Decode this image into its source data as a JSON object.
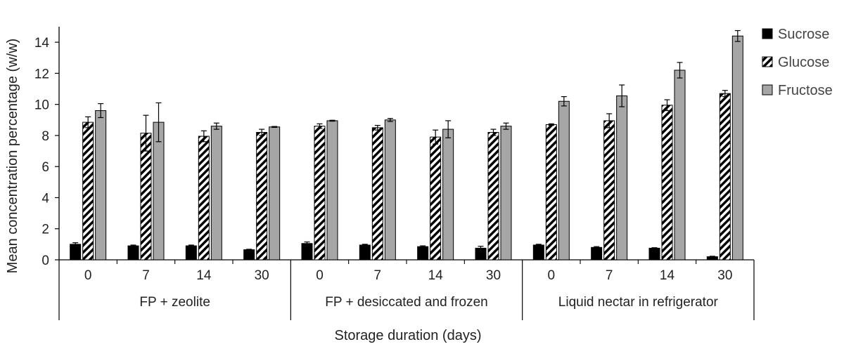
{
  "chart_data": {
    "type": "bar",
    "title": "",
    "xlabel": "Storage duration (days)",
    "ylabel": "Mean concentration percentage (w/w)",
    "ylim": [
      0,
      15
    ],
    "yticks": [
      0,
      2,
      4,
      6,
      8,
      10,
      12,
      14
    ],
    "grid": false,
    "legend_position": "top-right",
    "groups": [
      {
        "name": "FP + zeolite",
        "categories": [
          "0",
          "7",
          "14",
          "30"
        ]
      },
      {
        "name": "FP + desiccated and frozen",
        "categories": [
          "0",
          "7",
          "14",
          "30"
        ]
      },
      {
        "name": "Liquid nectar in refrigerator",
        "categories": [
          "0",
          "7",
          "14",
          "30"
        ]
      }
    ],
    "series": [
      {
        "name": "Sucrose",
        "fill": "solid-black",
        "color": "#000000",
        "values": [
          1.0,
          0.9,
          0.9,
          0.65,
          1.05,
          0.95,
          0.85,
          0.75,
          0.95,
          0.8,
          0.75,
          0.2
        ],
        "errors": [
          0.1,
          0.05,
          0.05,
          0.03,
          0.1,
          0.05,
          0.05,
          0.12,
          0.05,
          0.05,
          0.03,
          0.03
        ]
      },
      {
        "name": "Glucose",
        "fill": "diagonal-stripes",
        "color": "#000000",
        "values": [
          8.85,
          8.15,
          7.95,
          8.2,
          8.6,
          8.5,
          7.9,
          8.2,
          8.7,
          8.95,
          9.95,
          10.7
        ],
        "errors": [
          0.35,
          1.15,
          0.35,
          0.2,
          0.15,
          0.15,
          0.45,
          0.2,
          0.05,
          0.45,
          0.35,
          0.2
        ]
      },
      {
        "name": "Fructose",
        "fill": "solid-grey",
        "color": "#a6a6a6",
        "values": [
          9.6,
          8.85,
          8.6,
          8.55,
          8.95,
          9.0,
          8.4,
          8.6,
          10.2,
          10.55,
          12.2,
          14.4
        ],
        "errors": [
          0.45,
          1.25,
          0.2,
          0.03,
          0.03,
          0.1,
          0.55,
          0.2,
          0.3,
          0.7,
          0.5,
          0.35
        ]
      }
    ]
  }
}
